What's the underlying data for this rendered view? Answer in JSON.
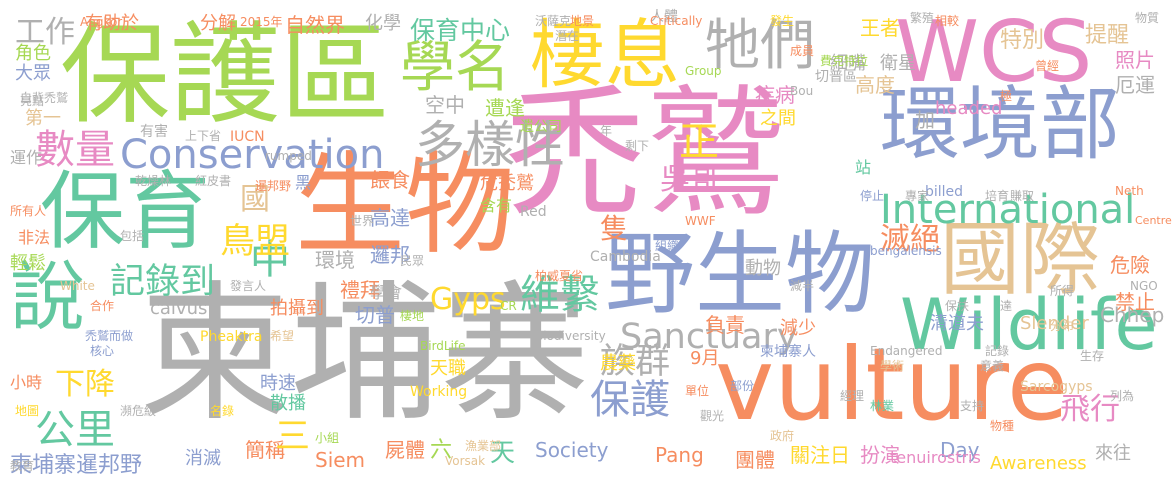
{
  "palette": {
    "gray": "#b0b0b0",
    "orange": "#f68d60",
    "green": "#63c8a0",
    "blue": "#8c9ecf",
    "pink": "#e78ac3",
    "lime": "#a6d854",
    "yellow": "#ffd92f",
    "tan": "#e5c494"
  },
  "words": [
    "禿鷲",
    "柬埔寨",
    "保護區",
    "生物",
    "WCS",
    "vulture",
    "野生物",
    "環境部",
    "國際",
    "保育",
    "Wildlife",
    "棲息",
    "學名",
    "牠們",
    "多樣性",
    "說",
    "數量",
    "Conservation",
    "International",
    "Sanctuary",
    "維繫",
    "保護",
    "族群",
    "滅絕",
    "公里",
    "下降",
    "中",
    "鳥盟",
    "記錄到",
    "國",
    "Gyps",
    "正",
    "吳哥",
    "飛行",
    "工作",
    "保育中心",
    "有助於",
    "分解",
    "自然界",
    "化學",
    "角色",
    "大眾",
    "第一",
    "運作",
    "非法",
    "輕鬆",
    "空中",
    "遭逢",
    "疾病",
    "高度",
    "特別",
    "提醒",
    "照片",
    "厄運",
    "危險",
    "禁止",
    "餵食",
    "危禿鷲",
    "含有",
    "隻",
    "高達",
    "邏邦",
    "環境",
    "禮拜",
    "學會",
    "切普",
    "拍攝到",
    "calvus",
    "時速",
    "散播",
    "消滅",
    "簡稱",
    "三",
    "屍體",
    "天",
    "六",
    "天職",
    "農藥",
    "Society",
    "Siem",
    "Pang",
    "關注日",
    "扮演",
    "團體",
    "Day",
    "Awareness",
    "來往",
    "清道夫",
    "Slender",
    "Chhep",
    "tenuirostris",
    "Sarcogyps",
    "負責",
    "減少",
    "動物",
    "9月",
    "柬埔寨暹邦野",
    "小時",
    "細嘴",
    "衛星",
    "加",
    "王者",
    "之間",
    "人體",
    "站",
    "headed",
    "billed",
    "bengalensis",
    "Red",
    "Cambodia",
    "Critically",
    "Angkor",
    "2015年",
    "亮點",
    "白背禿鷲",
    "有害",
    "乾燥林",
    "上下省",
    "IUCN",
    "rumped",
    "紅皮書",
    "暹邦野",
    "黑",
    "世界",
    "White",
    "所有人",
    "包括",
    "發言人",
    "合作",
    "禿鷲而做",
    "核心",
    "希望",
    "Phеaktra",
    "瀕危級",
    "地圖",
    "教育",
    "名錄",
    "小組",
    "Working",
    "BirdLife",
    "Biodiversity",
    "棲地",
    "CR",
    "民眾",
    "柏威夏省",
    "Vorsak",
    "漁業部",
    "柬埔寨人",
    "Endangered",
    "部份",
    "政府",
    "單位",
    "觀光",
    "學術",
    "生存",
    "經理",
    "林業",
    "意義",
    "物種",
    "支持",
    "記錄",
    "列為",
    "分布",
    "所得",
    "NGO",
    "Centre",
    "賺取",
    "培育",
    "專家",
    "Neth",
    "停止",
    "WWF",
    "組織",
    "減半",
    "保扶",
    "達",
    "極",
    "遺公司",
    "年",
    "剩下",
    "潛在",
    "Group",
    "沃薩克",
    "地景",
    "成員",
    "費克特拉",
    "Bou",
    "發生",
    "繁殖",
    "相較",
    "物質",
    "切普區",
    "曾經"
  ]
}
